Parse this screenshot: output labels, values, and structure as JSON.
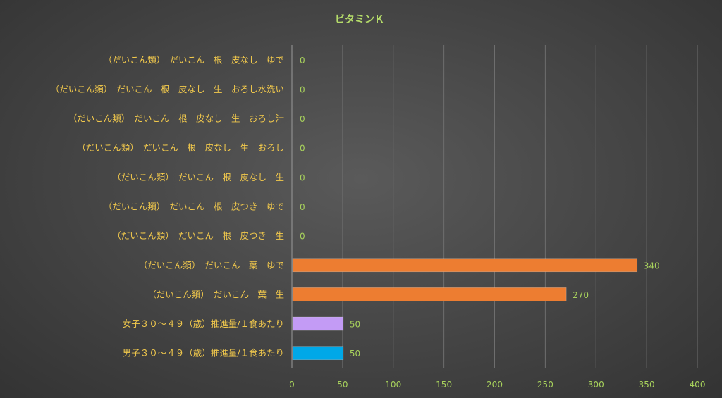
{
  "chart_data": {
    "type": "bar",
    "orientation": "horizontal",
    "title": "ビタミンＫ",
    "xlabel": "",
    "ylabel": "",
    "xlim": [
      0,
      400
    ],
    "x_ticks": [
      0,
      50,
      100,
      150,
      200,
      250,
      300,
      350,
      400
    ],
    "grid": true,
    "legend": "none",
    "bars": [
      {
        "category": "（だいこん類）　だいこん　根　皮なし　ゆで",
        "value": 0,
        "color": "#ed7d31"
      },
      {
        "category": "（だいこん類）　だいこん　根　皮なし　生　おろし水洗い",
        "value": 0,
        "color": "#ed7d31"
      },
      {
        "category": "（だいこん類）　だいこん　根　皮なし　生　おろし汁",
        "value": 0,
        "color": "#ed7d31"
      },
      {
        "category": "（だいこん類）　だいこん　根　皮なし　生　おろし",
        "value": 0,
        "color": "#ed7d31"
      },
      {
        "category": "（だいこん類）　だいこん　根　皮なし　生",
        "value": 0,
        "color": "#ed7d31"
      },
      {
        "category": "（だいこん類）　だいこん　根　皮つき　ゆで",
        "value": 0,
        "color": "#ed7d31"
      },
      {
        "category": "（だいこん類）　だいこん　根　皮つき　生",
        "value": 0,
        "color": "#ed7d31"
      },
      {
        "category": "（だいこん類）　だいこん　葉　ゆで",
        "value": 340,
        "color": "#ed7d31"
      },
      {
        "category": "（だいこん類）　だいこん　葉　生",
        "value": 270,
        "color": "#ed7d31"
      },
      {
        "category": "女子３０～４９（歳）推進量/１食あたり",
        "value": 50,
        "color": "#c39bf5"
      },
      {
        "category": "男子３０～４９（歳）推進量/１食あたり",
        "value": 50,
        "color": "#00a8e8"
      }
    ]
  }
}
